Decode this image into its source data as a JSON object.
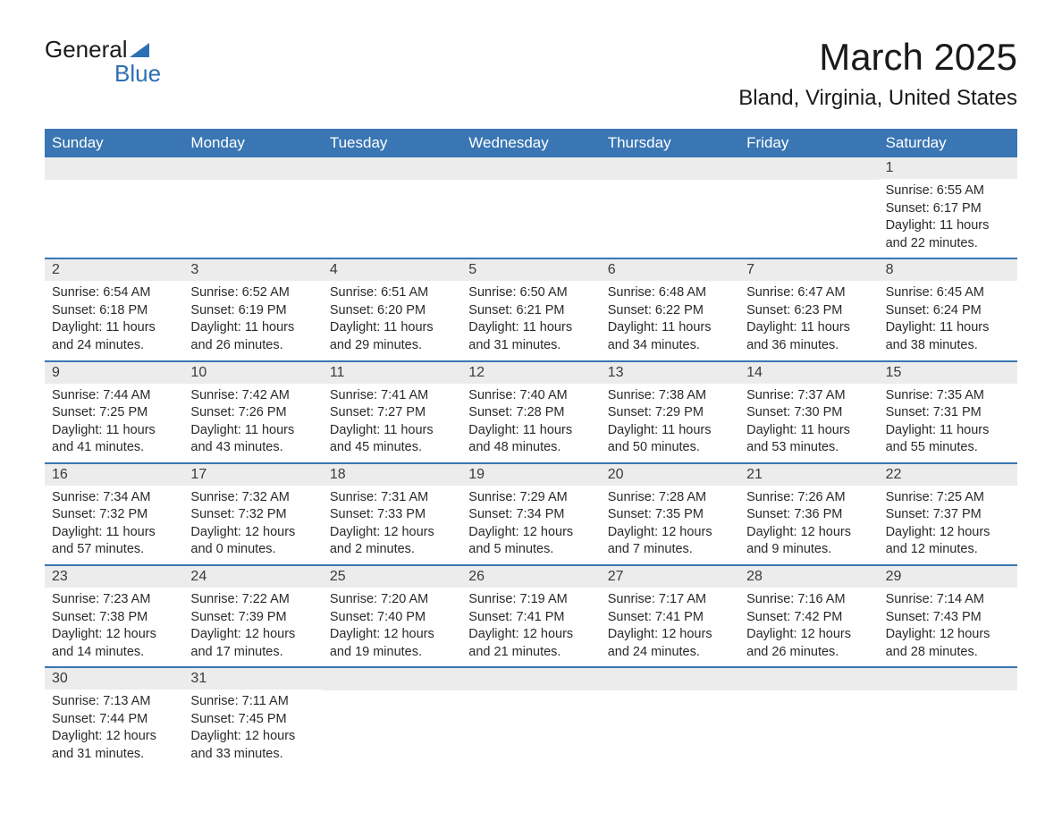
{
  "logo": {
    "line1": "General",
    "line2": "Blue"
  },
  "title": "March 2025",
  "location": "Bland, Virginia, United States",
  "colors": {
    "header_bg": "#3976b3",
    "header_text": "#ffffff",
    "daynum_bg": "#ececec",
    "border": "#3976b3",
    "text": "#2a2a2a"
  },
  "day_labels": [
    "Sunday",
    "Monday",
    "Tuesday",
    "Wednesday",
    "Thursday",
    "Friday",
    "Saturday"
  ],
  "weeks": [
    [
      {
        "empty": true
      },
      {
        "empty": true
      },
      {
        "empty": true
      },
      {
        "empty": true
      },
      {
        "empty": true
      },
      {
        "empty": true
      },
      {
        "day": "1",
        "sunrise": "Sunrise: 6:55 AM",
        "sunset": "Sunset: 6:17 PM",
        "daylight1": "Daylight: 11 hours",
        "daylight2": "and 22 minutes."
      }
    ],
    [
      {
        "day": "2",
        "sunrise": "Sunrise: 6:54 AM",
        "sunset": "Sunset: 6:18 PM",
        "daylight1": "Daylight: 11 hours",
        "daylight2": "and 24 minutes."
      },
      {
        "day": "3",
        "sunrise": "Sunrise: 6:52 AM",
        "sunset": "Sunset: 6:19 PM",
        "daylight1": "Daylight: 11 hours",
        "daylight2": "and 26 minutes."
      },
      {
        "day": "4",
        "sunrise": "Sunrise: 6:51 AM",
        "sunset": "Sunset: 6:20 PM",
        "daylight1": "Daylight: 11 hours",
        "daylight2": "and 29 minutes."
      },
      {
        "day": "5",
        "sunrise": "Sunrise: 6:50 AM",
        "sunset": "Sunset: 6:21 PM",
        "daylight1": "Daylight: 11 hours",
        "daylight2": "and 31 minutes."
      },
      {
        "day": "6",
        "sunrise": "Sunrise: 6:48 AM",
        "sunset": "Sunset: 6:22 PM",
        "daylight1": "Daylight: 11 hours",
        "daylight2": "and 34 minutes."
      },
      {
        "day": "7",
        "sunrise": "Sunrise: 6:47 AM",
        "sunset": "Sunset: 6:23 PM",
        "daylight1": "Daylight: 11 hours",
        "daylight2": "and 36 minutes."
      },
      {
        "day": "8",
        "sunrise": "Sunrise: 6:45 AM",
        "sunset": "Sunset: 6:24 PM",
        "daylight1": "Daylight: 11 hours",
        "daylight2": "and 38 minutes."
      }
    ],
    [
      {
        "day": "9",
        "sunrise": "Sunrise: 7:44 AM",
        "sunset": "Sunset: 7:25 PM",
        "daylight1": "Daylight: 11 hours",
        "daylight2": "and 41 minutes."
      },
      {
        "day": "10",
        "sunrise": "Sunrise: 7:42 AM",
        "sunset": "Sunset: 7:26 PM",
        "daylight1": "Daylight: 11 hours",
        "daylight2": "and 43 minutes."
      },
      {
        "day": "11",
        "sunrise": "Sunrise: 7:41 AM",
        "sunset": "Sunset: 7:27 PM",
        "daylight1": "Daylight: 11 hours",
        "daylight2": "and 45 minutes."
      },
      {
        "day": "12",
        "sunrise": "Sunrise: 7:40 AM",
        "sunset": "Sunset: 7:28 PM",
        "daylight1": "Daylight: 11 hours",
        "daylight2": "and 48 minutes."
      },
      {
        "day": "13",
        "sunrise": "Sunrise: 7:38 AM",
        "sunset": "Sunset: 7:29 PM",
        "daylight1": "Daylight: 11 hours",
        "daylight2": "and 50 minutes."
      },
      {
        "day": "14",
        "sunrise": "Sunrise: 7:37 AM",
        "sunset": "Sunset: 7:30 PM",
        "daylight1": "Daylight: 11 hours",
        "daylight2": "and 53 minutes."
      },
      {
        "day": "15",
        "sunrise": "Sunrise: 7:35 AM",
        "sunset": "Sunset: 7:31 PM",
        "daylight1": "Daylight: 11 hours",
        "daylight2": "and 55 minutes."
      }
    ],
    [
      {
        "day": "16",
        "sunrise": "Sunrise: 7:34 AM",
        "sunset": "Sunset: 7:32 PM",
        "daylight1": "Daylight: 11 hours",
        "daylight2": "and 57 minutes."
      },
      {
        "day": "17",
        "sunrise": "Sunrise: 7:32 AM",
        "sunset": "Sunset: 7:32 PM",
        "daylight1": "Daylight: 12 hours",
        "daylight2": "and 0 minutes."
      },
      {
        "day": "18",
        "sunrise": "Sunrise: 7:31 AM",
        "sunset": "Sunset: 7:33 PM",
        "daylight1": "Daylight: 12 hours",
        "daylight2": "and 2 minutes."
      },
      {
        "day": "19",
        "sunrise": "Sunrise: 7:29 AM",
        "sunset": "Sunset: 7:34 PM",
        "daylight1": "Daylight: 12 hours",
        "daylight2": "and 5 minutes."
      },
      {
        "day": "20",
        "sunrise": "Sunrise: 7:28 AM",
        "sunset": "Sunset: 7:35 PM",
        "daylight1": "Daylight: 12 hours",
        "daylight2": "and 7 minutes."
      },
      {
        "day": "21",
        "sunrise": "Sunrise: 7:26 AM",
        "sunset": "Sunset: 7:36 PM",
        "daylight1": "Daylight: 12 hours",
        "daylight2": "and 9 minutes."
      },
      {
        "day": "22",
        "sunrise": "Sunrise: 7:25 AM",
        "sunset": "Sunset: 7:37 PM",
        "daylight1": "Daylight: 12 hours",
        "daylight2": "and 12 minutes."
      }
    ],
    [
      {
        "day": "23",
        "sunrise": "Sunrise: 7:23 AM",
        "sunset": "Sunset: 7:38 PM",
        "daylight1": "Daylight: 12 hours",
        "daylight2": "and 14 minutes."
      },
      {
        "day": "24",
        "sunrise": "Sunrise: 7:22 AM",
        "sunset": "Sunset: 7:39 PM",
        "daylight1": "Daylight: 12 hours",
        "daylight2": "and 17 minutes."
      },
      {
        "day": "25",
        "sunrise": "Sunrise: 7:20 AM",
        "sunset": "Sunset: 7:40 PM",
        "daylight1": "Daylight: 12 hours",
        "daylight2": "and 19 minutes."
      },
      {
        "day": "26",
        "sunrise": "Sunrise: 7:19 AM",
        "sunset": "Sunset: 7:41 PM",
        "daylight1": "Daylight: 12 hours",
        "daylight2": "and 21 minutes."
      },
      {
        "day": "27",
        "sunrise": "Sunrise: 7:17 AM",
        "sunset": "Sunset: 7:41 PM",
        "daylight1": "Daylight: 12 hours",
        "daylight2": "and 24 minutes."
      },
      {
        "day": "28",
        "sunrise": "Sunrise: 7:16 AM",
        "sunset": "Sunset: 7:42 PM",
        "daylight1": "Daylight: 12 hours",
        "daylight2": "and 26 minutes."
      },
      {
        "day": "29",
        "sunrise": "Sunrise: 7:14 AM",
        "sunset": "Sunset: 7:43 PM",
        "daylight1": "Daylight: 12 hours",
        "daylight2": "and 28 minutes."
      }
    ],
    [
      {
        "day": "30",
        "sunrise": "Sunrise: 7:13 AM",
        "sunset": "Sunset: 7:44 PM",
        "daylight1": "Daylight: 12 hours",
        "daylight2": "and 31 minutes."
      },
      {
        "day": "31",
        "sunrise": "Sunrise: 7:11 AM",
        "sunset": "Sunset: 7:45 PM",
        "daylight1": "Daylight: 12 hours",
        "daylight2": "and 33 minutes."
      },
      {
        "empty": true
      },
      {
        "empty": true
      },
      {
        "empty": true
      },
      {
        "empty": true
      },
      {
        "empty": true
      }
    ]
  ]
}
